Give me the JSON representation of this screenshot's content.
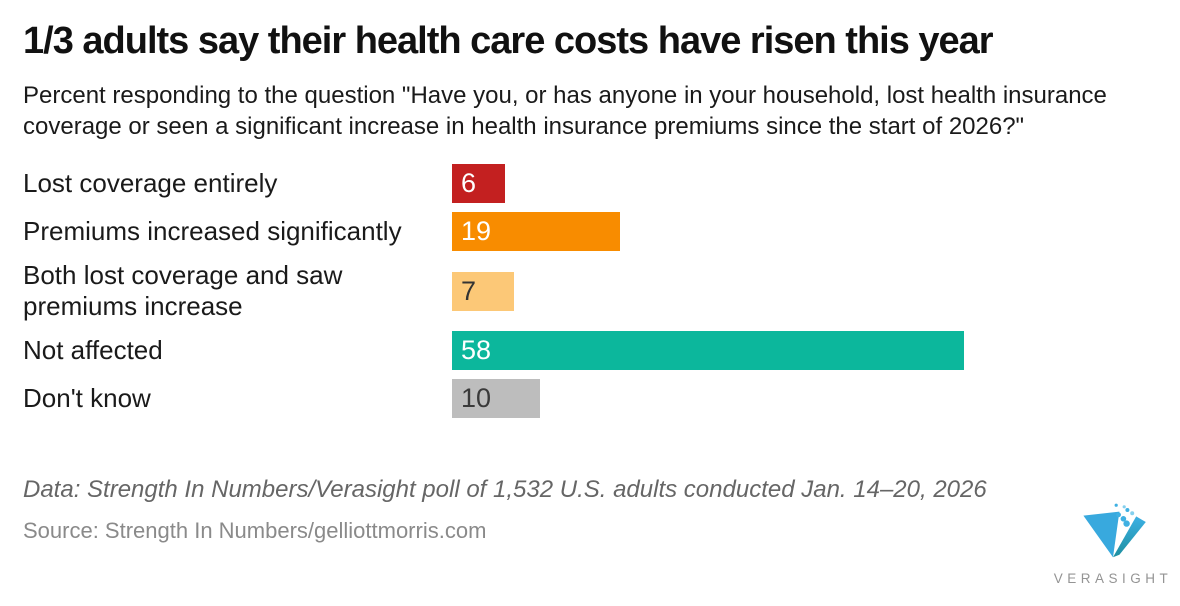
{
  "header": {
    "title": "1/3 adults say their health care costs have risen this year",
    "subtitle": "Percent responding to the question \"Have you, or has anyone in your household, lost health insurance coverage or seen a significant increase in health insurance premiums since the start of 2026?\""
  },
  "chart_data": {
    "type": "bar",
    "orientation": "horizontal",
    "title": "1/3 adults say their health care costs have risen this year",
    "subtitle": "Percent responding to the question \"Have you, or has anyone in your household, lost health insurance coverage or seen a significant increase in health insurance premiums since the start of 2026?\"",
    "categories": [
      "Lost coverage entirely",
      "Premiums increased significantly",
      "Both lost coverage and saw premiums increase",
      "Not affected",
      "Don't know"
    ],
    "values": [
      6,
      19,
      7,
      58,
      10
    ],
    "unit": "percent",
    "bar_colors": [
      "#c32020",
      "#f88c00",
      "#fcc877",
      "#0cb79c",
      "#bdbdbd"
    ],
    "value_label_colors": [
      "#ffffff",
      "#ffffff",
      "#333333",
      "#ffffff",
      "#3a3a3a"
    ],
    "value_labels_position": "inside-left",
    "xlabel": "",
    "ylabel": "",
    "xlim": [
      0,
      80
    ],
    "grid": false,
    "axis_shown": false,
    "legend": "none"
  },
  "footer": {
    "data_note": "Data: Strength In Numbers/Verasight poll of 1,532 U.S. adults conducted Jan. 14–20, 2026",
    "source_note": "Source: Strength In Numbers/gelliottmorris.com"
  },
  "logo": {
    "wordmark": "VERASIGHT",
    "mark_color": "#38a9de",
    "mark_shade_color": "#1d8f9f",
    "wordmark_color": "#949494"
  }
}
